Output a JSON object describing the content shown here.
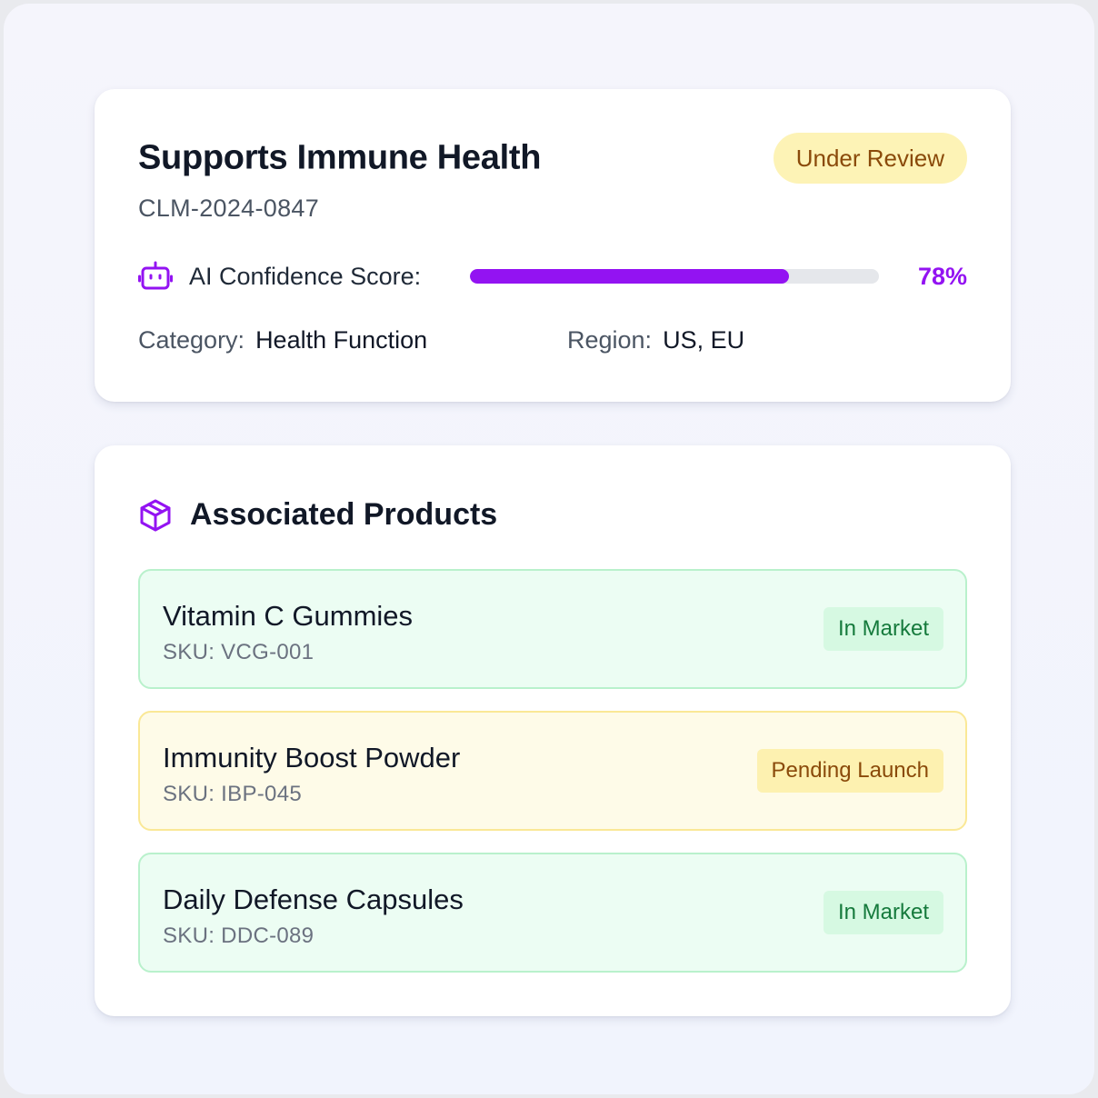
{
  "claim": {
    "title": "Supports Immune Health",
    "id": "CLM-2024-0847",
    "status": "Under Review",
    "confidence_label": "AI Confidence Score:",
    "confidence_value": 78,
    "confidence_text": "78%",
    "category_label": "Category:",
    "category": "Health Function",
    "region_label": "Region:",
    "region": "US, EU"
  },
  "products_section": {
    "title": "Associated Products",
    "items": [
      {
        "name": "Vitamin C Gummies",
        "sku": "SKU: VCG-001",
        "status": "In Market",
        "tone": "green"
      },
      {
        "name": "Immunity Boost Powder",
        "sku": "SKU: IBP-045",
        "status": "Pending Launch",
        "tone": "yellow"
      },
      {
        "name": "Daily Defense Capsules",
        "sku": "SKU: DDC-089",
        "status": "In Market",
        "tone": "green"
      }
    ]
  },
  "icons": {
    "confidence": "robot-icon",
    "products": "package-box-icon"
  },
  "colors": {
    "accent": "#9313f2",
    "status_review_bg": "#fdf3b6",
    "in_market_bg": "#d6f9e2",
    "pending_bg": "#fdf1b0"
  }
}
